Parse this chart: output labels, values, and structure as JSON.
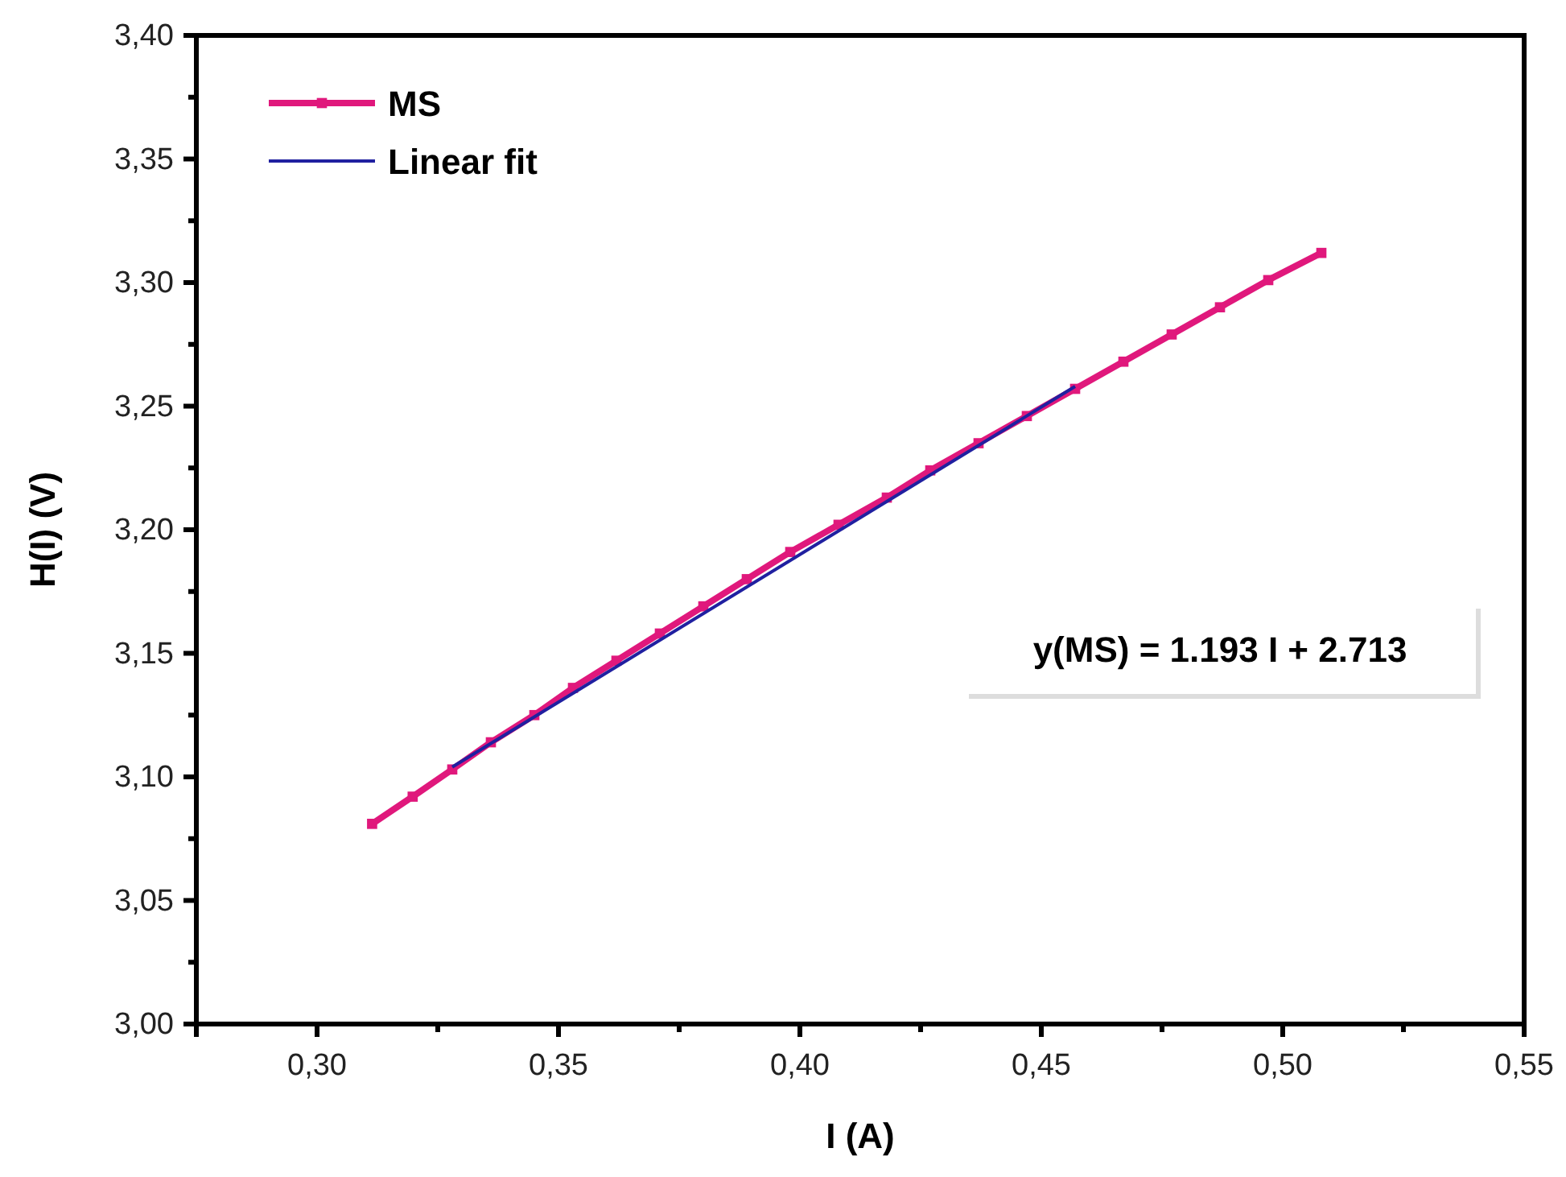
{
  "chart_data": {
    "type": "line",
    "xlabel": "I (A)",
    "ylabel": "H(I) (V)",
    "xlim": [
      0.275,
      0.55
    ],
    "ylim": [
      3.0,
      3.4
    ],
    "xticks": [
      {
        "value": 0.3,
        "label": "0,30"
      },
      {
        "value": 0.35,
        "label": "0,35"
      },
      {
        "value": 0.4,
        "label": "0,40"
      },
      {
        "value": 0.45,
        "label": "0,45"
      },
      {
        "value": 0.5,
        "label": "0,50"
      },
      {
        "value": 0.55,
        "label": "0,55"
      }
    ],
    "yticks": [
      {
        "value": 3.0,
        "label": "3,00"
      },
      {
        "value": 3.05,
        "label": "3,05"
      },
      {
        "value": 3.1,
        "label": "3,10"
      },
      {
        "value": 3.15,
        "label": "3,15"
      },
      {
        "value": 3.2,
        "label": "3,20"
      },
      {
        "value": 3.25,
        "label": "3,25"
      },
      {
        "value": 3.3,
        "label": "3,30"
      },
      {
        "value": 3.35,
        "label": "3,35"
      },
      {
        "value": 3.4,
        "label": "3,40"
      }
    ],
    "grid": false,
    "legend": "top left",
    "marker": "square",
    "series": [
      {
        "name": "MS",
        "color": "#e0187c",
        "x": [
          0.3114,
          0.3198,
          0.328,
          0.336,
          0.345,
          0.353,
          0.362,
          0.371,
          0.38,
          0.389,
          0.398,
          0.408,
          0.418,
          0.427,
          0.437,
          0.447,
          0.457,
          0.467,
          0.477,
          0.487,
          0.497,
          0.508
        ],
        "values": [
          3.081,
          3.092,
          3.103,
          3.114,
          3.125,
          3.136,
          3.147,
          3.158,
          3.169,
          3.18,
          3.191,
          3.202,
          3.213,
          3.224,
          3.235,
          3.246,
          3.257,
          3.268,
          3.279,
          3.29,
          3.301,
          3.312
        ]
      },
      {
        "name": "Linear fit",
        "color": "#2020a0",
        "type": "line",
        "marker": "none",
        "x": [
          0.328,
          0.457
        ],
        "values": [
          3.104,
          3.258
        ]
      }
    ],
    "annotations": [
      "y(MS) = 1.193 I + 2.713"
    ]
  }
}
